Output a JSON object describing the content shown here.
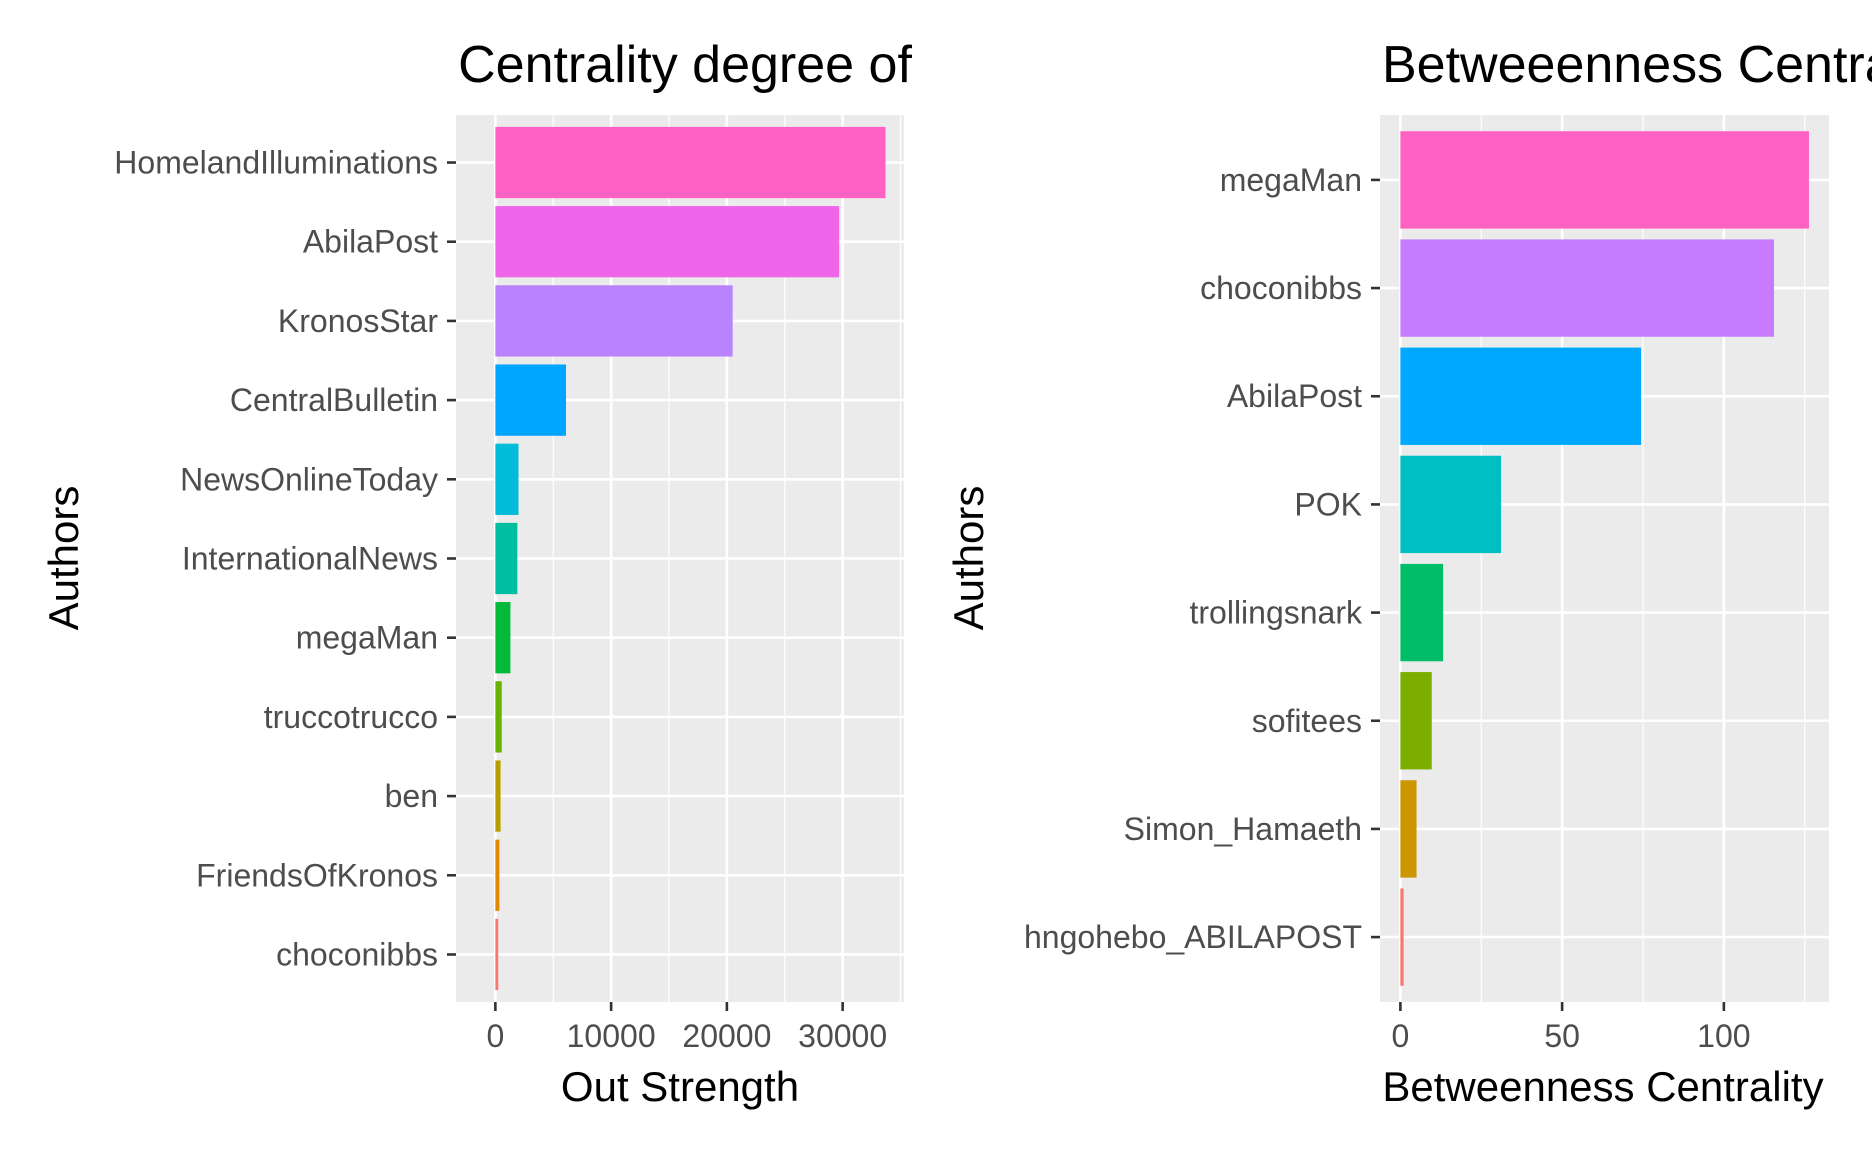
{
  "chart_data": [
    {
      "type": "bar",
      "orientation": "horizontal",
      "title": "Centrality degree of",
      "xlabel": "Out Strength",
      "ylabel": "Authors",
      "xlim": [
        -3400,
        35300
      ],
      "xticks": [
        0,
        10000,
        20000,
        30000
      ],
      "xtick_labels": [
        "0",
        "10000",
        "20000",
        "30000"
      ],
      "grid": true,
      "legend": "none",
      "categories": [
        "HomelandIlluminations",
        "AbilaPost",
        "KronosStar",
        "CentralBulletin",
        "NewsOnlineToday",
        "InternationalNews",
        "megaMan",
        "truccotrucco",
        "ben",
        "FriendsOfKronos",
        "choconibbs"
      ],
      "values": [
        33700,
        29700,
        20500,
        6100,
        2000,
        1900,
        1300,
        550,
        450,
        350,
        250
      ],
      "colors": [
        "#FF61C3",
        "#F066EA",
        "#B983FF",
        "#00A5FF",
        "#00BCD8",
        "#00BFA0",
        "#00BA38",
        "#6BB100",
        "#B79F00",
        "#E18A00",
        "#F8766D"
      ]
    },
    {
      "type": "bar",
      "orientation": "horizontal",
      "title": "Betweeenness Centra",
      "xlabel": "Betweenness Centrality",
      "ylabel": "Authors",
      "xlim": [
        -6.3,
        132.5
      ],
      "xticks": [
        0,
        50,
        100
      ],
      "xtick_labels": [
        "0",
        "50",
        "100"
      ],
      "grid": true,
      "legend": "none",
      "categories": [
        "megaMan",
        "choconibbs",
        "AbilaPost",
        "POK",
        "trollingsnark",
        "sofitees",
        "Simon_Hamaeth",
        "hngohebo_ABILAPOST"
      ],
      "values": [
        126.3,
        115.5,
        74.4,
        31.1,
        13.2,
        9.7,
        5.0,
        1.0
      ],
      "colors": [
        "#FF61C3",
        "#C77CFF",
        "#00A9FF",
        "#00BFC4",
        "#00BE67",
        "#7CAE00",
        "#CD9600",
        "#F8766D"
      ]
    }
  ]
}
